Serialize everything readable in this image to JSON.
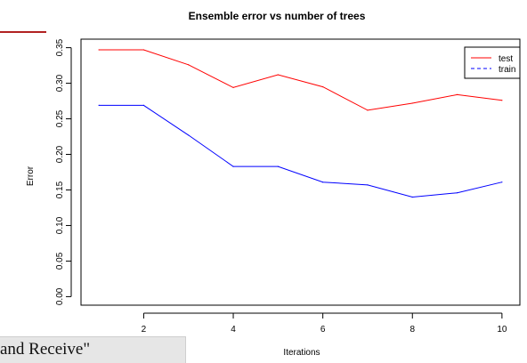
{
  "caption_fragment": "and Receive\"",
  "chart_data": {
    "type": "line",
    "title": "Ensemble error vs number of trees",
    "xlabel": "Iterations",
    "ylabel": "Error",
    "x": [
      1,
      2,
      3,
      4,
      5,
      6,
      7,
      8,
      9,
      10
    ],
    "xlim": [
      0.6,
      10.4
    ],
    "ylim": [
      -0.012,
      0.362
    ],
    "xticks": [
      2,
      4,
      6,
      8,
      10
    ],
    "yticks": [
      0.0,
      0.05,
      0.1,
      0.15,
      0.2,
      0.25,
      0.3,
      0.35
    ],
    "ytick_labels": [
      "0.00",
      "0.05",
      "0.10",
      "0.15",
      "0.20",
      "0.25",
      "0.30",
      "0.35"
    ],
    "grid": false,
    "legend_position": "top-right",
    "series": [
      {
        "name": "test",
        "color": "#ff0000",
        "dash": "solid",
        "values": [
          0.347,
          0.347,
          0.326,
          0.294,
          0.312,
          0.295,
          0.262,
          0.272,
          0.284,
          0.276
        ]
      },
      {
        "name": "train",
        "color": "#0000ff",
        "dash": "dashed",
        "values": [
          0.269,
          0.269,
          0.227,
          0.183,
          0.183,
          0.161,
          0.157,
          0.14,
          0.146,
          0.161
        ]
      }
    ]
  }
}
